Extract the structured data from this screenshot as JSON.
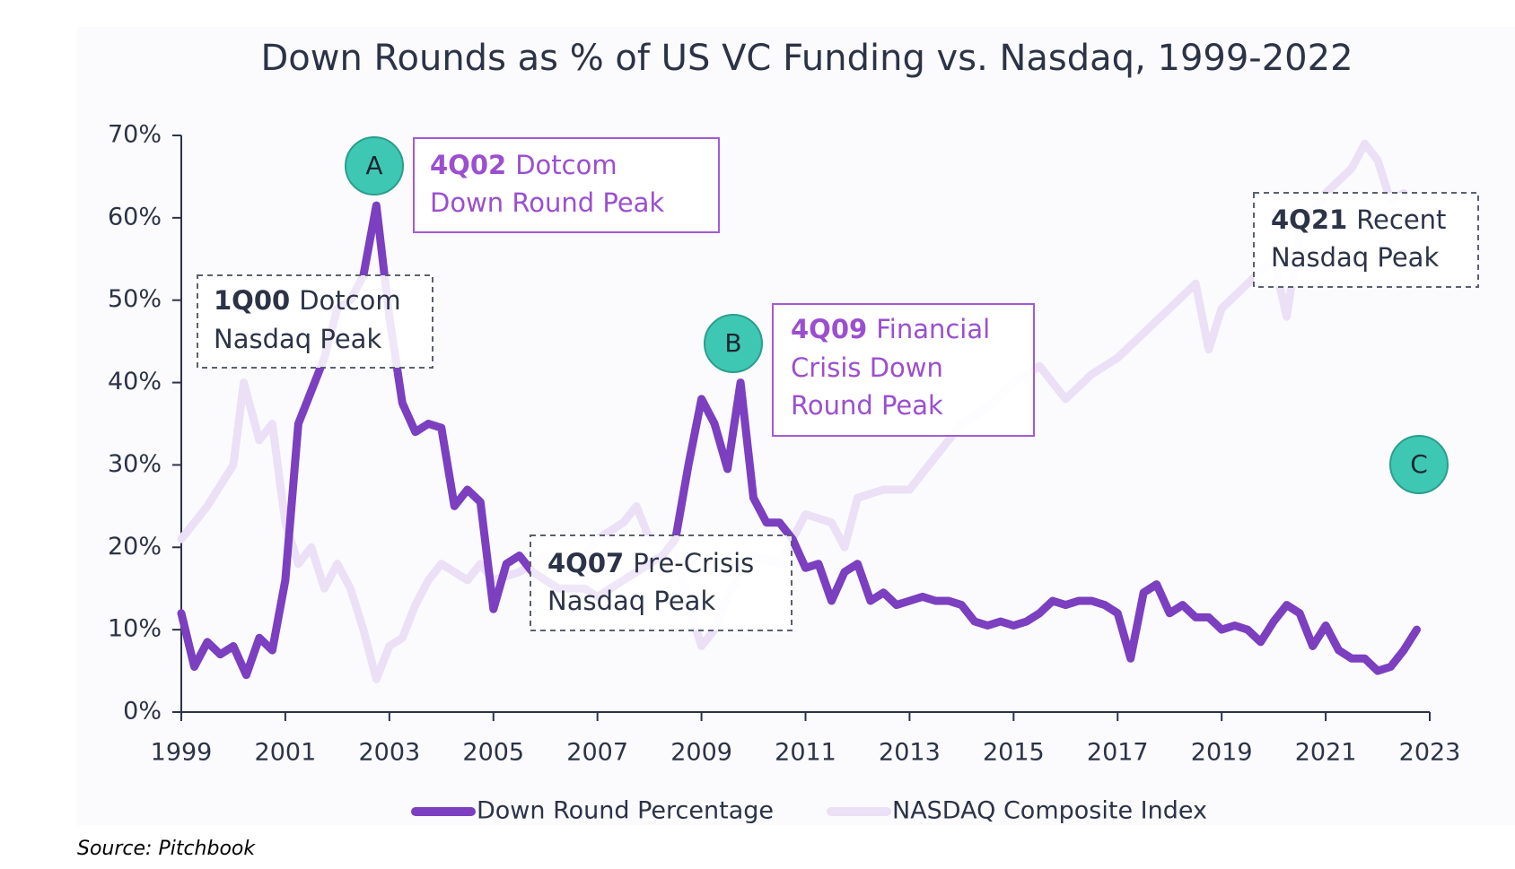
{
  "chart_data": {
    "type": "line",
    "title": "Down Rounds as % of US VC Funding vs. Nasdaq, 1999-2022",
    "source": "Source: Pitchbook",
    "xlim": [
      1999,
      2023
    ],
    "xticks": [
      1999,
      2001,
      2003,
      2005,
      2007,
      2009,
      2011,
      2013,
      2015,
      2017,
      2019,
      2021,
      2023
    ],
    "ylim": [
      0,
      70
    ],
    "yticks": [
      {
        "value": 0,
        "label": "0%"
      },
      {
        "value": 10,
        "label": "10%"
      },
      {
        "value": 20,
        "label": "20%"
      },
      {
        "value": 30,
        "label": "30%"
      },
      {
        "value": 40,
        "label": "40%"
      },
      {
        "value": 50,
        "label": "50%"
      },
      {
        "value": 60,
        "label": "60%"
      },
      {
        "value": 70,
        "label": "70%"
      }
    ],
    "series": [
      {
        "name": "NASDAQ Composite Index",
        "color": "#ebe0f6",
        "x": [
          1999,
          1999.5,
          2000,
          2000.2,
          2000.5,
          2000.75,
          2001,
          2001.25,
          2001.5,
          2001.75,
          2002,
          2002.25,
          2002.5,
          2002.75,
          2003,
          2003.25,
          2003.5,
          2003.75,
          2004,
          2004.25,
          2004.5,
          2004.75,
          2005,
          2005.5,
          2006,
          2006.5,
          2007,
          2007.5,
          2007.75,
          2008,
          2008.5,
          2008.75,
          2009,
          2009.25,
          2009.5,
          2009.75,
          2010,
          2010.5,
          2011,
          2011.5,
          2011.75,
          2012,
          2012.5,
          2013,
          2013.5,
          2014,
          2014.5,
          2015,
          2015.5,
          2016,
          2016.5,
          2017,
          2017.5,
          2018,
          2018.5,
          2018.75,
          2019,
          2019.5,
          2020,
          2020.25,
          2020.5,
          2021,
          2021.5,
          2021.75,
          2022,
          2022.25,
          2022.5
        ],
        "values": [
          21,
          25,
          30,
          40,
          33,
          35,
          23,
          18,
          20,
          15,
          18,
          15,
          10,
          4,
          8,
          9,
          13,
          16,
          18,
          17,
          16,
          18,
          16,
          17,
          19,
          17,
          21,
          23,
          25,
          21,
          20,
          13,
          8,
          10,
          14,
          17,
          19,
          18,
          24,
          23,
          20,
          26,
          27,
          27,
          31,
          35,
          37,
          40,
          42,
          38,
          41,
          43,
          46,
          49,
          52,
          44,
          49,
          52,
          55,
          48,
          58,
          63,
          66,
          69,
          67,
          62,
          63
        ]
      },
      {
        "name": "Down Round Percentage",
        "color": "#7b3fbf",
        "x": [
          1999,
          1999.25,
          1999.5,
          1999.75,
          2000,
          2000.25,
          2000.5,
          2000.75,
          2001,
          2001.25,
          2001.5,
          2001.75,
          2002,
          2002.25,
          2002.5,
          2002.75,
          2003,
          2003.25,
          2003.5,
          2003.75,
          2004,
          2004.25,
          2004.5,
          2004.75,
          2005,
          2005.25,
          2005.5,
          2005.75,
          2006,
          2006.25,
          2006.5,
          2006.75,
          2007,
          2007.25,
          2007.5,
          2007.75,
          2008,
          2008.25,
          2008.5,
          2008.75,
          2009,
          2009.25,
          2009.5,
          2009.75,
          2010,
          2010.25,
          2010.5,
          2010.75,
          2011,
          2011.25,
          2011.5,
          2011.75,
          2012,
          2012.25,
          2012.5,
          2012.75,
          2013,
          2013.25,
          2013.5,
          2013.75,
          2014,
          2014.25,
          2014.5,
          2014.75,
          2015,
          2015.25,
          2015.5,
          2015.75,
          2016,
          2016.25,
          2016.5,
          2016.75,
          2017,
          2017.25,
          2017.5,
          2017.75,
          2018,
          2018.25,
          2018.5,
          2018.75,
          2019,
          2019.25,
          2019.5,
          2019.75,
          2020,
          2020.25,
          2020.5,
          2020.75,
          2021,
          2021.25,
          2021.5,
          2021.75,
          2022,
          2022.25,
          2022.5,
          2022.75
        ],
        "values": [
          12,
          5.5,
          8.5,
          7,
          8,
          4.5,
          9,
          7.5,
          16,
          35,
          39,
          43,
          49,
          50,
          53,
          61.5,
          48,
          37.5,
          34,
          35,
          34.5,
          25,
          27,
          25.5,
          12.5,
          18,
          19,
          17,
          16,
          15,
          15,
          15,
          14,
          15,
          16,
          17,
          18,
          19,
          21,
          30,
          38,
          35,
          29.5,
          40,
          26,
          23,
          23,
          21,
          17.5,
          18,
          13.5,
          17,
          18,
          13.5,
          14.5,
          13,
          13.5,
          14,
          13.5,
          13.5,
          13,
          11,
          10.5,
          11,
          10.5,
          11,
          12,
          13.5,
          13,
          13.5,
          13.5,
          13,
          12,
          6.5,
          14.5,
          15.5,
          12,
          13,
          11.5,
          11.5,
          10,
          10.5,
          10,
          8.5,
          11,
          13,
          12,
          8,
          10.5,
          7.5,
          6.5,
          6.5,
          5,
          5.5,
          7.5,
          10
        ]
      }
    ],
    "annotations": [
      {
        "lead": "1Q00",
        "lines": [
          "Dotcom",
          "Nasdaq Peak"
        ]
      },
      {
        "lead": "4Q02",
        "lines": [
          "Dotcom",
          "Down Round Peak"
        ]
      },
      {
        "lead": "4Q07",
        "lines": [
          "Pre-Crisis",
          "Nasdaq Peak"
        ]
      },
      {
        "lead": "4Q09",
        "lines": [
          "Financial",
          "Crisis Down",
          "Round Peak"
        ]
      },
      {
        "lead": "4Q21",
        "lines": [
          "Recent",
          "Nasdaq Peak"
        ]
      }
    ],
    "markers": [
      "A",
      "B",
      "C"
    ]
  }
}
